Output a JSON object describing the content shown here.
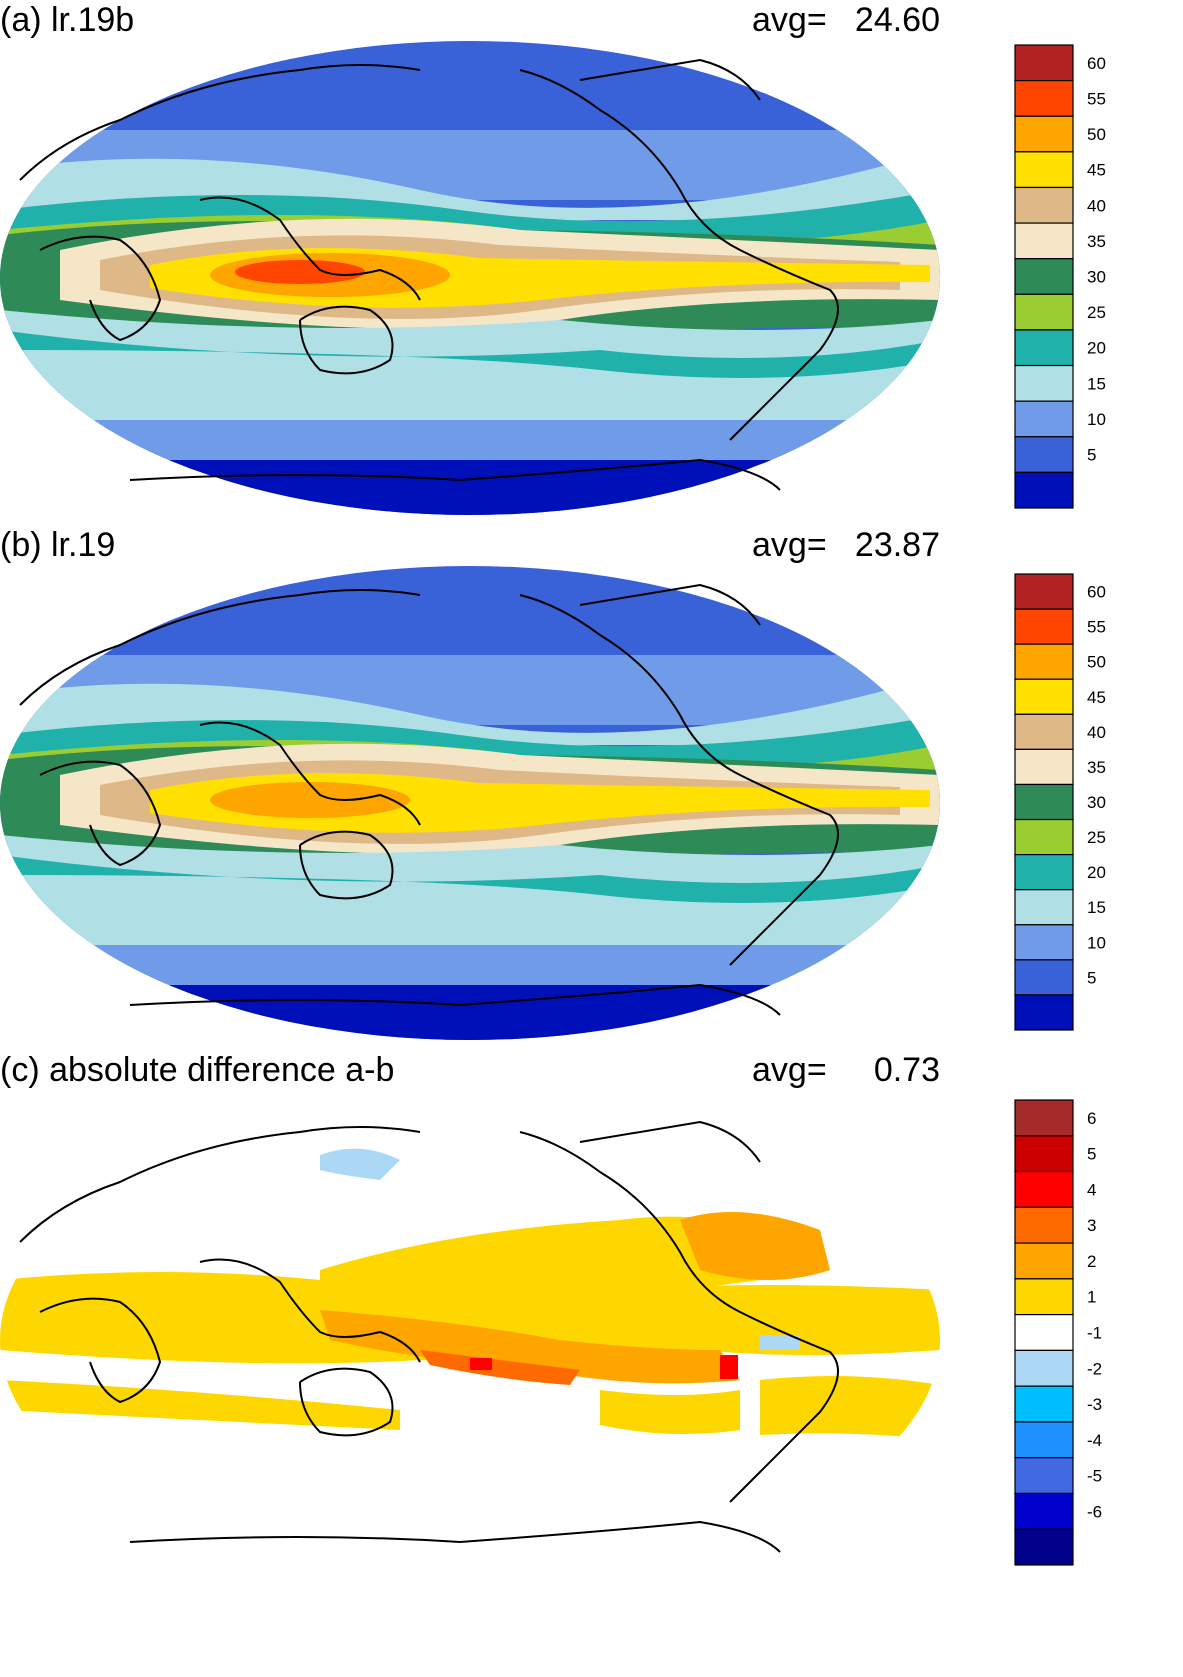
{
  "colors": {
    "coast": "#000000",
    "ocean_bg_map": "#6fa0e8",
    "fill_panels_ab": [
      "#0010b8",
      "#3a62d8",
      "#6f9be8",
      "#b0e0e6",
      "#20b2aa",
      "#9acd32",
      "#2e8b57",
      "#f5e6c8",
      "#deb887",
      "#ffe000",
      "#ffa500",
      "#ff4500",
      "#b22222"
    ],
    "fill_panel_c": [
      "#00008b",
      "#0000cd",
      "#4169e1",
      "#1e90ff",
      "#00bfff",
      "#add8f5",
      "#ffffff",
      "#ffd700",
      "#ffa500",
      "#ff6a00",
      "#ff0000",
      "#cc0000",
      "#a52a2a"
    ]
  },
  "panels": [
    {
      "id": "a",
      "title": "(a) lr.19b",
      "avg_label": "avg=",
      "avg_value": "24.60",
      "colorbar": {
        "ticks": [
          "60",
          "55",
          "50",
          "45",
          "40",
          "35",
          "30",
          "25",
          "20",
          "15",
          "10",
          "5"
        ],
        "colors": [
          "#b22222",
          "#ff4500",
          "#ffa500",
          "#ffe000",
          "#deb887",
          "#f5e6c8",
          "#2e8b57",
          "#9acd32",
          "#20b2aa",
          "#b0e0e6",
          "#6f9be8",
          "#3a62d8",
          "#0010b8"
        ]
      }
    },
    {
      "id": "b",
      "title": "(b) lr.19",
      "avg_label": "avg=",
      "avg_value": "23.87",
      "colorbar": {
        "ticks": [
          "60",
          "55",
          "50",
          "45",
          "40",
          "35",
          "30",
          "25",
          "20",
          "15",
          "10",
          "5"
        ],
        "colors": [
          "#b22222",
          "#ff4500",
          "#ffa500",
          "#ffe000",
          "#deb887",
          "#f5e6c8",
          "#2e8b57",
          "#9acd32",
          "#20b2aa",
          "#b0e0e6",
          "#6f9be8",
          "#3a62d8",
          "#0010b8"
        ]
      }
    },
    {
      "id": "c",
      "title": "(c) absolute difference a-b",
      "avg_label": "avg=",
      "avg_value": "0.73",
      "colorbar": {
        "ticks": [
          "6",
          "5",
          "4",
          "3",
          "2",
          "1",
          "-1",
          "-2",
          "-3",
          "-4",
          "-5",
          "-6"
        ],
        "colors": [
          "#a52a2a",
          "#cc0000",
          "#ff0000",
          "#ff6a00",
          "#ffa500",
          "#ffd700",
          "#ffffff",
          "#add8f5",
          "#00bfff",
          "#1e90ff",
          "#4169e1",
          "#0000cd",
          "#00008b"
        ]
      }
    }
  ]
}
